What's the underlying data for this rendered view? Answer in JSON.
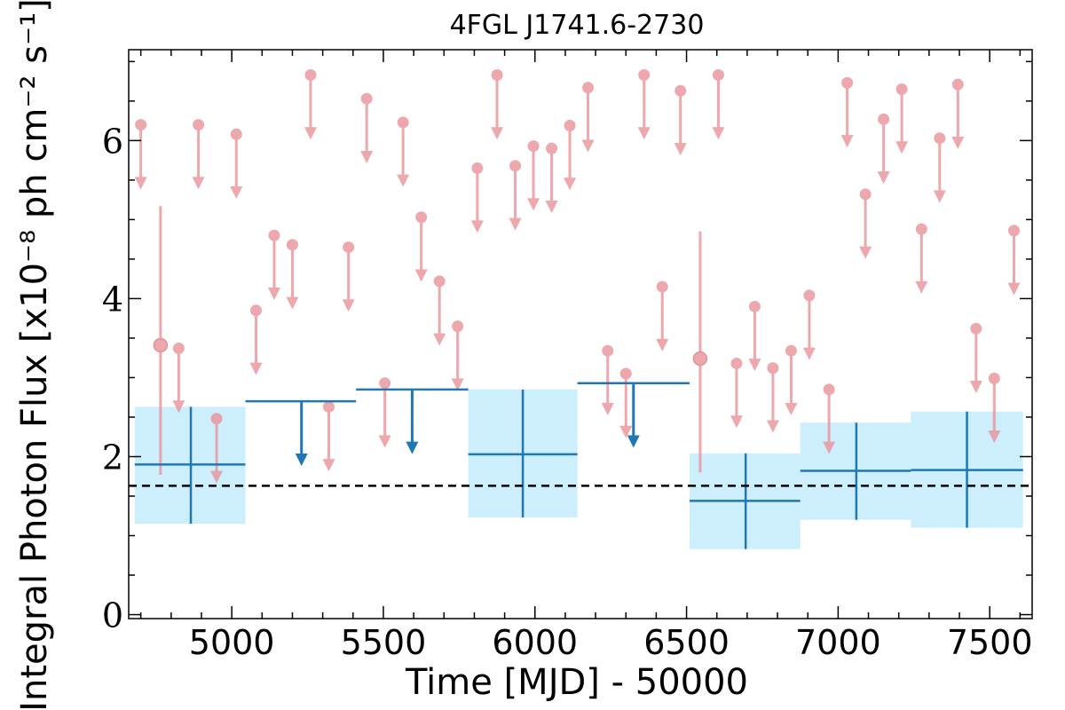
{
  "chart_data": {
    "type": "scatter",
    "title": "4FGL J1741.6-2730",
    "xlabel": "Time [MJD] - 50000",
    "ylabel": "Integral Photon Flux [x10⁻⁸ ph cm⁻² s⁻¹]",
    "xlim": [
      4660,
      7640
    ],
    "ylim": [
      -0.05,
      7.15
    ],
    "x_ticks": [
      5000,
      5500,
      6000,
      6500,
      7000,
      7500
    ],
    "y_ticks": [
      0,
      2,
      4,
      6
    ],
    "grid": false,
    "reference_level": 1.63,
    "colors": {
      "fine_bins": "#e8959a",
      "coarse_bins": "#1f77b4",
      "coarse_band": "#cdeefc",
      "reference_line": "#000000"
    },
    "fine_upper_limits": [
      {
        "x": 4700,
        "y": 6.2
      },
      {
        "x": 4825,
        "y": 3.37
      },
      {
        "x": 4890,
        "y": 6.2
      },
      {
        "x": 4950,
        "y": 2.48
      },
      {
        "x": 5015,
        "y": 6.08
      },
      {
        "x": 5080,
        "y": 3.85
      },
      {
        "x": 5140,
        "y": 4.8
      },
      {
        "x": 5200,
        "y": 4.68
      },
      {
        "x": 5260,
        "y": 6.83
      },
      {
        "x": 5320,
        "y": 2.63
      },
      {
        "x": 5385,
        "y": 4.65
      },
      {
        "x": 5445,
        "y": 6.53
      },
      {
        "x": 5505,
        "y": 2.93
      },
      {
        "x": 5565,
        "y": 6.23
      },
      {
        "x": 5625,
        "y": 5.03
      },
      {
        "x": 5685,
        "y": 4.22
      },
      {
        "x": 5745,
        "y": 3.65
      },
      {
        "x": 5810,
        "y": 5.65
      },
      {
        "x": 5875,
        "y": 6.83
      },
      {
        "x": 5935,
        "y": 5.68
      },
      {
        "x": 5995,
        "y": 5.93
      },
      {
        "x": 6055,
        "y": 5.9
      },
      {
        "x": 6115,
        "y": 6.19
      },
      {
        "x": 6175,
        "y": 6.67
      },
      {
        "x": 6240,
        "y": 3.34
      },
      {
        "x": 6300,
        "y": 3.05
      },
      {
        "x": 6360,
        "y": 6.83
      },
      {
        "x": 6420,
        "y": 4.15
      },
      {
        "x": 6480,
        "y": 6.63
      },
      {
        "x": 6605,
        "y": 6.83
      },
      {
        "x": 6665,
        "y": 3.18
      },
      {
        "x": 6725,
        "y": 3.9
      },
      {
        "x": 6785,
        "y": 3.12
      },
      {
        "x": 6845,
        "y": 3.34
      },
      {
        "x": 6905,
        "y": 4.04
      },
      {
        "x": 6970,
        "y": 2.85
      },
      {
        "x": 7030,
        "y": 6.73
      },
      {
        "x": 7090,
        "y": 5.32
      },
      {
        "x": 7150,
        "y": 6.27
      },
      {
        "x": 7210,
        "y": 6.65
      },
      {
        "x": 7275,
        "y": 4.88
      },
      {
        "x": 7335,
        "y": 6.03
      },
      {
        "x": 7395,
        "y": 6.71
      },
      {
        "x": 7455,
        "y": 3.62
      },
      {
        "x": 7515,
        "y": 2.99
      },
      {
        "x": 7580,
        "y": 4.86
      }
    ],
    "fine_detections": [
      {
        "x": 4765,
        "y": 3.41,
        "ylo": 1.77,
        "yhi": 5.17
      },
      {
        "x": 6545,
        "y": 3.24,
        "ylo": 1.8,
        "yhi": 4.85
      }
    ],
    "coarse_detections": [
      {
        "x": 4865,
        "xlo": 4680,
        "xhi": 5045,
        "y": 1.9,
        "ylo": 1.15,
        "yhi": 2.63
      },
      {
        "x": 5960,
        "xlo": 5780,
        "xhi": 6140,
        "y": 2.03,
        "ylo": 1.23,
        "yhi": 2.85
      },
      {
        "x": 6695,
        "xlo": 6510,
        "xhi": 6875,
        "y": 1.44,
        "ylo": 0.83,
        "yhi": 2.04
      },
      {
        "x": 7060,
        "xlo": 6875,
        "xhi": 7240,
        "y": 1.82,
        "ylo": 1.2,
        "yhi": 2.43
      },
      {
        "x": 7425,
        "xlo": 7240,
        "xhi": 7610,
        "y": 1.83,
        "ylo": 1.1,
        "yhi": 2.57
      }
    ],
    "coarse_upper_limits": [
      {
        "x": 5230,
        "xlo": 5045,
        "xhi": 5410,
        "y": 2.7
      },
      {
        "x": 5595,
        "xlo": 5410,
        "xhi": 5780,
        "y": 2.85
      },
      {
        "x": 6325,
        "xlo": 6140,
        "xhi": 6510,
        "y": 2.93
      }
    ]
  }
}
